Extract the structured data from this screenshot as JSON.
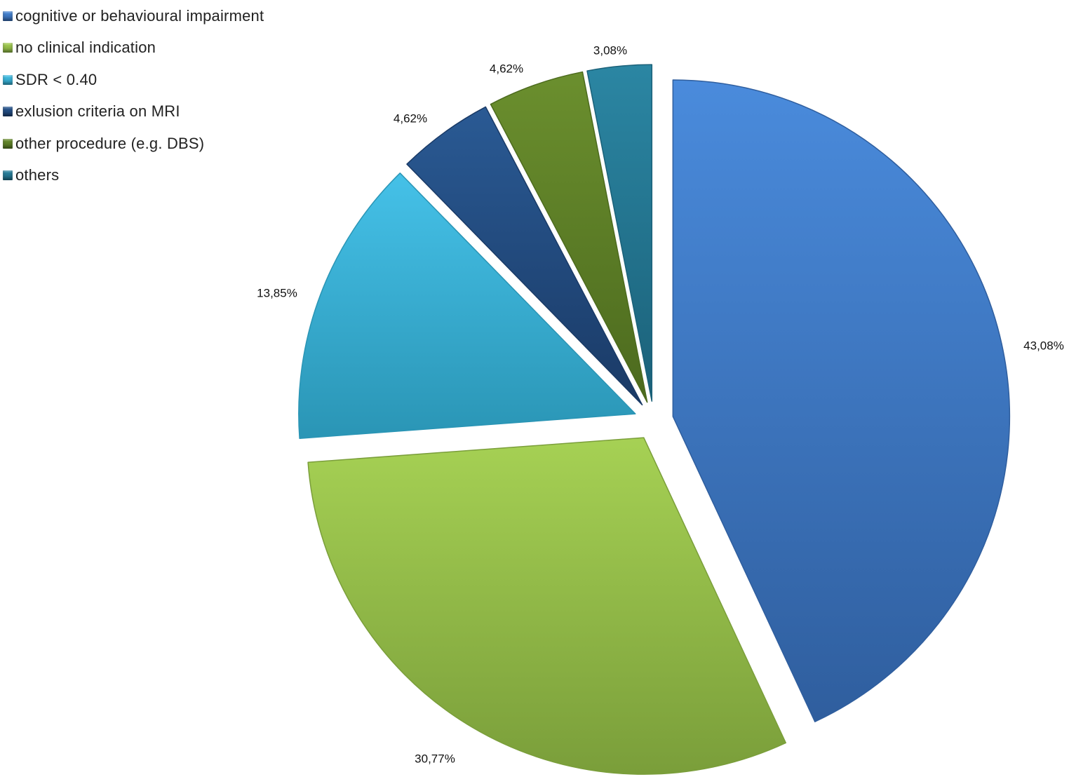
{
  "chart_data": {
    "type": "pie",
    "exploded": true,
    "legend_position": "top-left",
    "slices": [
      {
        "label": "cognitive or behavioural impairment",
        "value": 43.08,
        "value_label": "43,08%",
        "color": "#4A8BDC",
        "color_dark": "#2F5E9E"
      },
      {
        "label": "no clinical indication",
        "value": 30.77,
        "value_label": "30,77%",
        "color": "#A6D154",
        "color_dark": "#7A9E3A"
      },
      {
        "label": "SDR < 0.40",
        "value": 13.85,
        "value_label": "13,85%",
        "color": "#45C1E8",
        "color_dark": "#2A95B5"
      },
      {
        "label": "exlusion criteria on MRI",
        "value": 4.62,
        "value_label": "4,62%",
        "color": "#2A5A94",
        "color_dark": "#1A3A66"
      },
      {
        "label": "other procedure (e.g. DBS)",
        "value": 4.62,
        "value_label": "4,62%",
        "color": "#6B8F2E",
        "color_dark": "#4C6A1E"
      },
      {
        "label": "others",
        "value": 3.08,
        "value_label": "3,08%",
        "color": "#2B86A3",
        "color_dark": "#1B6179"
      }
    ]
  }
}
